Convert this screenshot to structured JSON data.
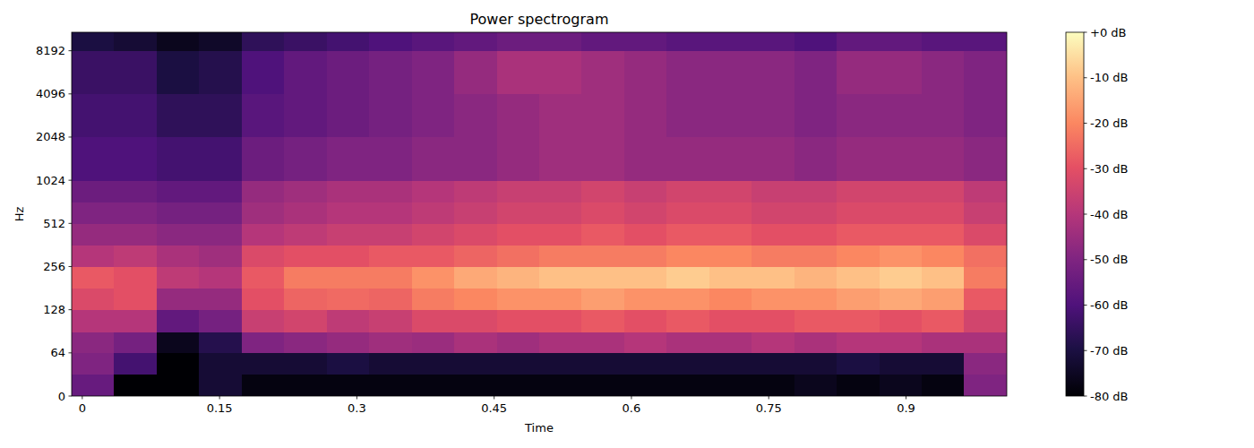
{
  "chart_data": {
    "type": "heatmap",
    "title": "Power spectrogram",
    "x_label": "Time",
    "y_label": "Hz",
    "log": "y",
    "xlim": [
      -0.0116,
      1.0101
    ],
    "ylim": [
      0,
      11025
    ],
    "xticks": [
      0,
      0.15,
      0.3,
      0.45,
      0.6,
      0.75,
      0.9
    ],
    "yticks": [
      0,
      64,
      128,
      256,
      512,
      1024,
      2048,
      4096,
      8192
    ],
    "x_edges": [
      -0.0116,
      0.0348,
      0.0813,
      0.1277,
      0.1741,
      0.2206,
      0.267,
      0.3135,
      0.3599,
      0.4063,
      0.4528,
      0.4992,
      0.5457,
      0.5921,
      0.6385,
      0.685,
      0.7314,
      0.7779,
      0.8243,
      0.8707,
      0.9172,
      0.9636,
      1.0101
    ],
    "y_edges": [
      0,
      32,
      64,
      90,
      128,
      180,
      256,
      362,
      512,
      724,
      1024,
      2048,
      4096,
      8192,
      11025
    ],
    "values": [
      [
        -55,
        -80,
        -80,
        -72,
        -78,
        -78,
        -78,
        -78,
        -78,
        -78,
        -78,
        -78,
        -78,
        -78,
        -78,
        -78,
        -78,
        -76,
        -78,
        -76,
        -78,
        -50
      ],
      [
        -50,
        -62,
        -80,
        -72,
        -72,
        -72,
        -70,
        -72,
        -72,
        -72,
        -72,
        -72,
        -72,
        -72,
        -72,
        -72,
        -72,
        -72,
        -70,
        -72,
        -72,
        -48
      ],
      [
        -48,
        -52,
        -76,
        -68,
        -50,
        -48,
        -46,
        -44,
        -45,
        -42,
        -44,
        -42,
        -42,
        -40,
        -42,
        -42,
        -40,
        -42,
        -40,
        -40,
        -42,
        -42
      ],
      [
        -40,
        -40,
        -56,
        -52,
        -36,
        -34,
        -38,
        -36,
        -32,
        -32,
        -30,
        -30,
        -28,
        -30,
        -28,
        -30,
        -30,
        -28,
        -28,
        -30,
        -28,
        -34
      ],
      [
        -32,
        -30,
        -46,
        -46,
        -30,
        -26,
        -25,
        -26,
        -22,
        -20,
        -18,
        -18,
        -16,
        -18,
        -18,
        -20,
        -18,
        -18,
        -16,
        -14,
        -16,
        -28
      ],
      [
        -28,
        -30,
        -38,
        -40,
        -28,
        -22,
        -22,
        -22,
        -18,
        -14,
        -12,
        -10,
        -10,
        -10,
        -8,
        -10,
        -10,
        -12,
        -10,
        -8,
        -10,
        -22
      ],
      [
        -40,
        -38,
        -42,
        -44,
        -32,
        -30,
        -30,
        -28,
        -28,
        -26,
        -24,
        -22,
        -22,
        -22,
        -20,
        -20,
        -22,
        -22,
        -20,
        -18,
        -20,
        -24
      ],
      [
        -46,
        -46,
        -48,
        -48,
        -40,
        -38,
        -36,
        -36,
        -34,
        -32,
        -30,
        -30,
        -28,
        -30,
        -28,
        -28,
        -30,
        -30,
        -28,
        -28,
        -28,
        -32
      ],
      [
        -50,
        -50,
        -52,
        -52,
        -44,
        -42,
        -40,
        -40,
        -38,
        -36,
        -34,
        -34,
        -32,
        -34,
        -32,
        -32,
        -34,
        -34,
        -32,
        -32,
        -32,
        -36
      ],
      [
        -54,
        -54,
        -56,
        -56,
        -46,
        -44,
        -42,
        -42,
        -40,
        -38,
        -36,
        -36,
        -34,
        -36,
        -34,
        -34,
        -36,
        -36,
        -34,
        -34,
        -34,
        -38
      ],
      [
        -60,
        -60,
        -62,
        -62,
        -54,
        -52,
        -50,
        -50,
        -48,
        -48,
        -46,
        -44,
        -44,
        -46,
        -46,
        -46,
        -46,
        -48,
        -46,
        -46,
        -46,
        -48
      ],
      [
        -62,
        -62,
        -66,
        -66,
        -58,
        -56,
        -54,
        -52,
        -50,
        -48,
        -46,
        -44,
        -44,
        -46,
        -48,
        -48,
        -48,
        -50,
        -48,
        -48,
        -48,
        -50
      ],
      [
        -64,
        -64,
        -70,
        -68,
        -60,
        -56,
        -54,
        -52,
        -50,
        -46,
        -42,
        -42,
        -44,
        -46,
        -48,
        -48,
        -48,
        -50,
        -46,
        -46,
        -48,
        -50
      ],
      [
        -70,
        -72,
        -76,
        -74,
        -66,
        -64,
        -62,
        -60,
        -58,
        -56,
        -54,
        -54,
        -56,
        -56,
        -58,
        -58,
        -58,
        -60,
        -56,
        -56,
        -58,
        -58
      ]
    ],
    "colorbar_range": [
      -80,
      0
    ],
    "colorbar_ticks": [
      {
        "value": 0,
        "label": "+0 dB"
      },
      {
        "value": -10,
        "label": "-10 dB"
      },
      {
        "value": -20,
        "label": "-20 dB"
      },
      {
        "value": -30,
        "label": "-30 dB"
      },
      {
        "value": -40,
        "label": "-40 dB"
      },
      {
        "value": -50,
        "label": "-50 dB"
      },
      {
        "value": -60,
        "label": "-60 dB"
      },
      {
        "value": -70,
        "label": "-70 dB"
      },
      {
        "value": -80,
        "label": "-80 dB"
      }
    ]
  }
}
